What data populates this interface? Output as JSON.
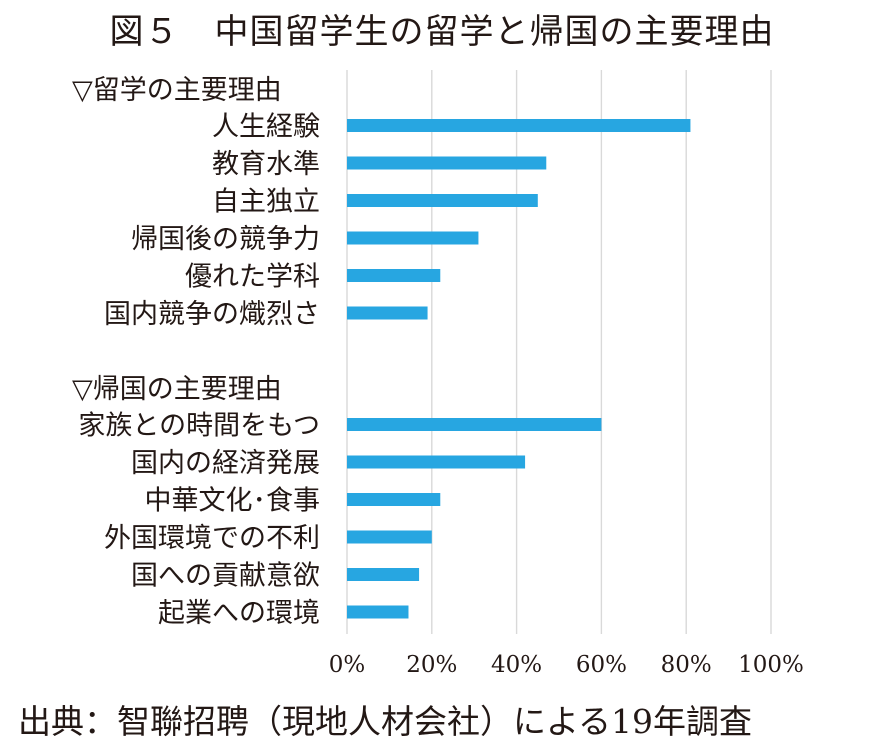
{
  "figure": {
    "title": "図５　中国留学生の留学と帰国の主要理由",
    "source": "出典：智聯招聘（現地人材会社）による19年調査"
  },
  "chart_data": {
    "type": "bar",
    "orientation": "horizontal",
    "title": "図５　中国留学生の留学と帰国の主要理由",
    "xlim": [
      0,
      100
    ],
    "x_ticks": [
      "0%",
      "20%",
      "40%",
      "60%",
      "80%",
      "100%"
    ],
    "grid": "vertical",
    "bar_color": "#27a6e1",
    "groups": [
      {
        "heading": "▽留学の主要理由",
        "categories": [
          "人生経験",
          "教育水準",
          "自主独立",
          "帰国後の競争力",
          "優れた学科",
          "国内競争の熾烈さ"
        ],
        "values": [
          81,
          47,
          45,
          31,
          22,
          19
        ]
      },
      {
        "heading": "▽帰国の主要理由",
        "categories": [
          "家族との時間をもつ",
          "国内の経済発展",
          "中華文化･食事",
          "外国環境での不利",
          "国への貢献意欲",
          "起業への環境"
        ],
        "values": [
          60,
          42,
          22,
          20,
          17,
          14.5
        ]
      }
    ]
  }
}
